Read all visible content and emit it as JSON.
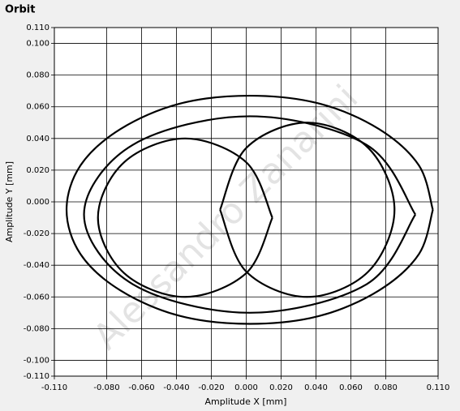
{
  "chart_data": {
    "type": "line",
    "title": "Orbit",
    "x_label": "Amplitude X [mm]",
    "y_label": "Amplitude Y [mm]",
    "watermark": "Alessandro Zanarini",
    "xlim": [
      -0.11,
      0.11
    ],
    "xticks": [
      {
        "value": -0.11,
        "label": "-0.110"
      },
      {
        "value": -0.08,
        "label": "-0.080"
      },
      {
        "value": -0.06,
        "label": "-0.060"
      },
      {
        "value": -0.04,
        "label": "-0.040"
      },
      {
        "value": -0.02,
        "label": "-0.020"
      },
      {
        "value": 0,
        "label": "0.000"
      },
      {
        "value": 0.02,
        "label": "0.020"
      },
      {
        "value": 0.04,
        "label": "0.040"
      },
      {
        "value": 0.06,
        "label": "0.060"
      },
      {
        "value": 0.08,
        "label": "0.080"
      },
      {
        "value": 0.11,
        "label": "0.110"
      }
    ],
    "ylim": [
      -0.11,
      0.11
    ],
    "yticks": [
      {
        "value": -0.11,
        "label": "-0.110"
      },
      {
        "value": -0.1,
        "label": "-0.100"
      },
      {
        "value": -0.08,
        "label": "-0.080"
      },
      {
        "value": -0.06,
        "label": "-0.060"
      },
      {
        "value": -0.04,
        "label": "-0.040"
      },
      {
        "value": -0.02,
        "label": "-0.020"
      },
      {
        "value": 0,
        "label": "0.000"
      },
      {
        "value": 0.02,
        "label": "0.020"
      },
      {
        "value": 0.04,
        "label": "0.040"
      },
      {
        "value": 0.06,
        "label": "0.060"
      },
      {
        "value": 0.08,
        "label": "0.080"
      },
      {
        "value": 0.1,
        "label": "0.100"
      },
      {
        "value": 0.11,
        "label": "0.110"
      }
    ],
    "grid": true,
    "series": [
      {
        "color": "#000000",
        "x": [
          0.107,
          0.099,
          0.076,
          0.042,
          0.002,
          -0.038,
          -0.072,
          -0.095,
          -0.103,
          -0.095,
          -0.072,
          -0.038,
          0.002,
          0.042,
          0.076,
          0.099,
          0.107
        ],
        "values": [
          -0.005,
          0.023,
          0.046,
          0.062,
          0.067,
          0.062,
          0.046,
          0.023,
          -0.005,
          -0.033,
          -0.056,
          -0.072,
          -0.077,
          -0.072,
          -0.056,
          -0.033,
          -0.005
        ]
      },
      {
        "color": "#000000",
        "x": [
          0.097,
          0.069,
          0.002,
          -0.065,
          -0.093,
          -0.065,
          0.002,
          0.069,
          0.097
        ],
        "values": [
          -0.008,
          0.036,
          0.054,
          0.036,
          -0.008,
          -0.052,
          -0.07,
          -0.052,
          -0.008
        ]
      },
      {
        "color": "#000000",
        "x": [
          0.015,
          0.0,
          -0.035,
          -0.07,
          -0.085,
          -0.07,
          -0.035,
          0.0,
          0.015
        ],
        "values": [
          -0.01,
          0.025,
          0.04,
          0.025,
          -0.01,
          -0.045,
          -0.06,
          -0.045,
          -0.01
        ]
      },
      {
        "color": "#000000",
        "x": [
          -0.015,
          0.0,
          0.035,
          0.07,
          0.085,
          0.07,
          0.035,
          0.0,
          -0.015
        ],
        "values": [
          -0.005,
          0.034,
          0.05,
          0.034,
          -0.005,
          -0.044,
          -0.06,
          -0.044,
          -0.005
        ]
      }
    ]
  }
}
